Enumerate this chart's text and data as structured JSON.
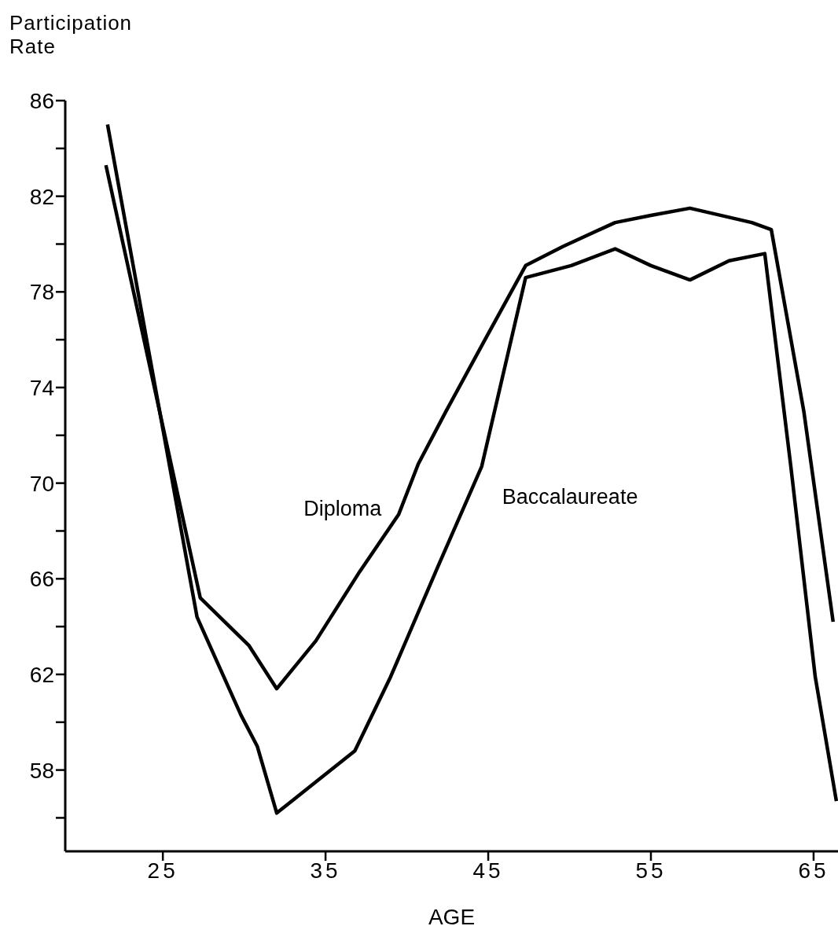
{
  "chart_data": {
    "type": "line",
    "xlabel": "AGE",
    "ylabel": "Participation Rate",
    "xlim": [
      19,
      66.5
    ],
    "xticks": [
      25,
      35,
      45,
      55,
      65
    ],
    "ylim": [
      54.6,
      86
    ],
    "yticks": [
      {
        "value": 56,
        "label": null
      },
      58,
      {
        "value": 60,
        "label": null
      },
      62,
      {
        "value": 64,
        "label": null
      },
      66,
      {
        "value": 68,
        "label": null
      },
      70,
      {
        "value": 72,
        "label": null
      },
      74,
      {
        "value": 76,
        "label": null
      },
      78,
      {
        "value": 80,
        "label": null
      },
      82,
      {
        "value": 84,
        "label": null
      },
      86
    ],
    "marker": "none",
    "line_style": "solid",
    "series": [
      {
        "name": "Diploma",
        "color": "#000000",
        "x": [
          21.5,
          27.3,
          30.3,
          32.0,
          34.4,
          37.1,
          39.5,
          40.7,
          42.4,
          44.8,
          47.3,
          49.6,
          52.8,
          55.0,
          57.4,
          61.2,
          62.4,
          64.4,
          66.2
        ],
        "values": [
          83.3,
          65.2,
          63.2,
          61.4,
          63.4,
          66.3,
          68.7,
          70.8,
          73.0,
          76.0,
          79.1,
          79.9,
          80.9,
          81.2,
          81.5,
          80.9,
          80.6,
          73.0,
          64.2
        ]
      },
      {
        "name": "Baccalaureate",
        "color": "#000000",
        "x": [
          21.6,
          27.1,
          29.8,
          30.8,
          32.0,
          34.4,
          36.8,
          39.0,
          41.9,
          44.6,
          47.3,
          50.1,
          52.8,
          55.0,
          57.4,
          59.8,
          62.0,
          63.6,
          65.1,
          66.4
        ],
        "values": [
          85.0,
          64.4,
          60.3,
          59.0,
          56.2,
          57.5,
          58.8,
          61.9,
          66.5,
          70.7,
          78.6,
          79.1,
          79.8,
          79.1,
          78.5,
          79.3,
          79.6,
          70.7,
          61.9,
          56.7
        ]
      }
    ]
  }
}
